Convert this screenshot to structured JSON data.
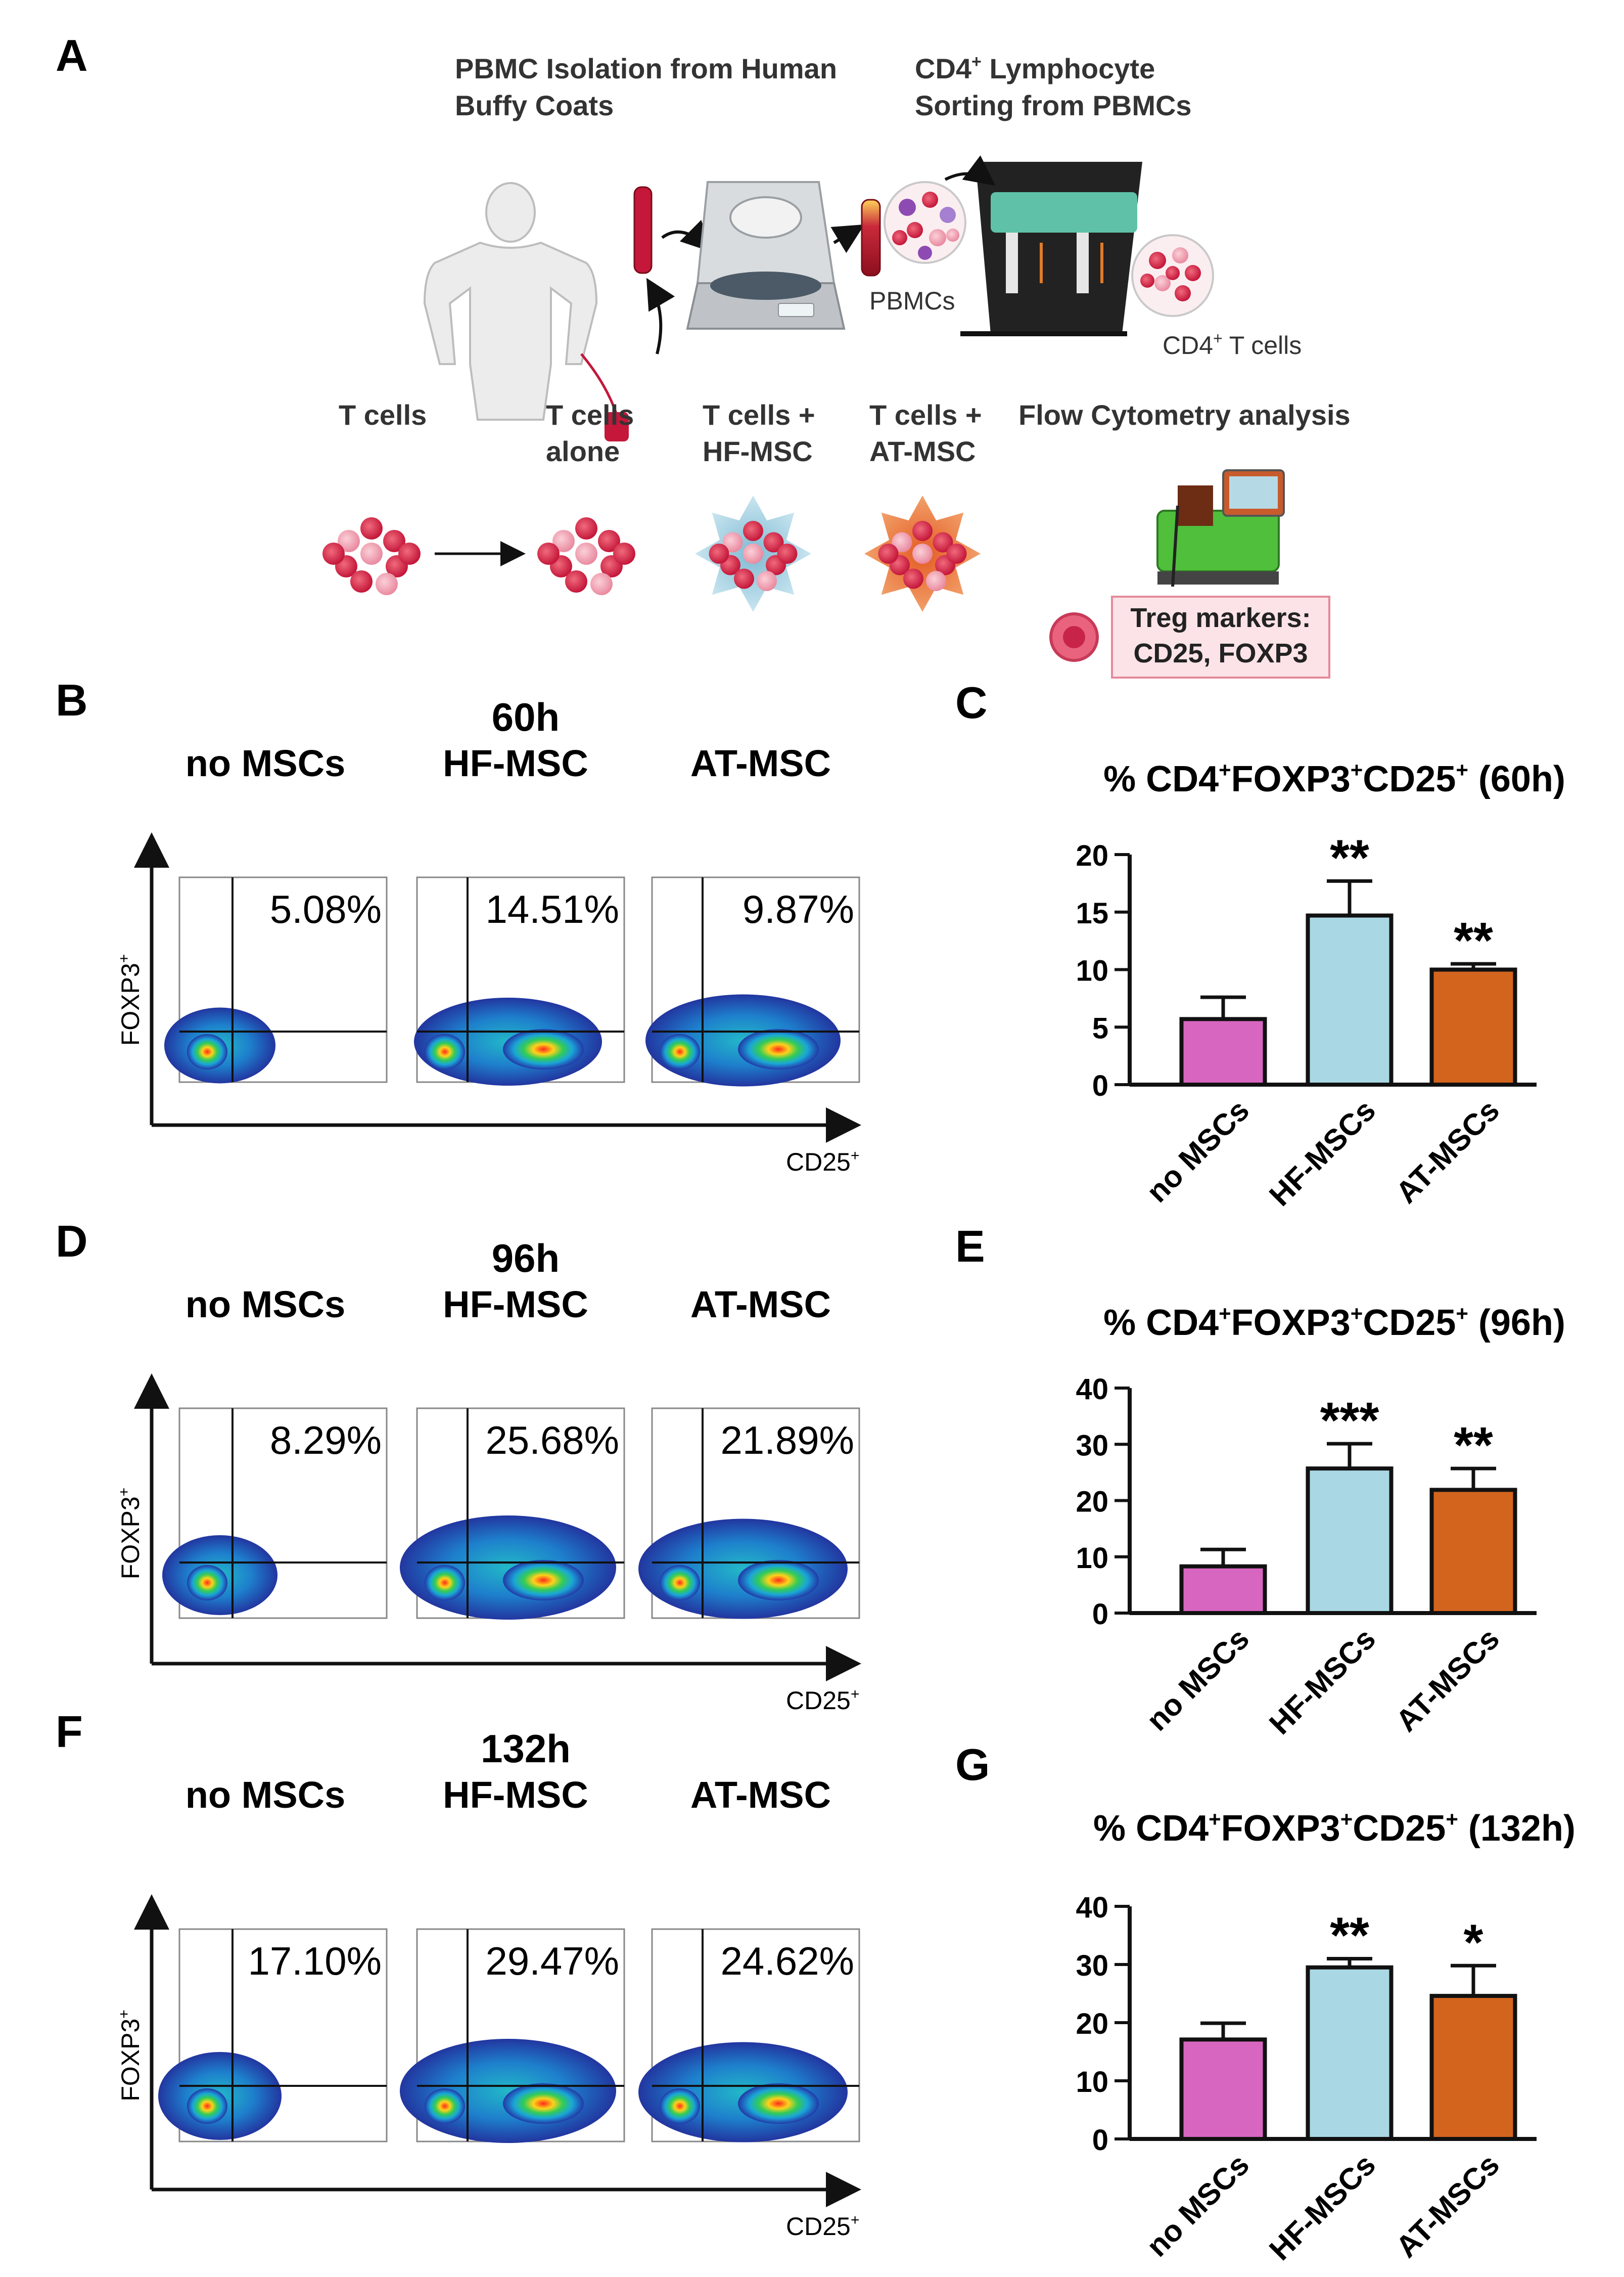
{
  "colors": {
    "no_msc": "#d766c0",
    "hf_msc": "#a9d7e3",
    "at_msc": "#d3641e",
    "dot_red": "#d62d48",
    "dot_pink": "#f0a2b2",
    "treg_box": "#fbe3e7"
  },
  "panelA": {
    "letter": "A",
    "pbmc_isolation_l1": "PBMC Isolation from Human",
    "pbmc_isolation_l2": "Buffy Coats",
    "cd4_sorting_l1": "CD4",
    "cd4_sorting_sup": "+",
    "cd4_sorting_l1b": " Lymphocyte",
    "cd4_sorting_l2": "Sorting from PBMCs",
    "pbmcs_label": "PBMCs",
    "cd4_tcells_a": "CD4",
    "cd4_tcells_sup": "+",
    "cd4_tcells_b": " T cells",
    "tcells": "T cells",
    "tcells_alone_l1": "T cells",
    "tcells_alone_l2": "alone",
    "tcells_hf_l1": "T cells  +",
    "tcells_hf_l2": "HF-MSC",
    "tcells_at_l1": "T cells +",
    "tcells_at_l2": "AT-MSC",
    "flow_analysis": "Flow Cytometry analysis",
    "treg_l1": "Treg markers:",
    "treg_l2": "CD25, FOXP3"
  },
  "flow_panels": [
    {
      "letter": "B",
      "time": "60h",
      "cols": [
        "no MSCs",
        "HF-MSC",
        "AT-MSC"
      ],
      "percents": [
        "5.08%",
        "14.51%",
        "9.87%"
      ],
      "ylabel": "FOXP3",
      "ysup": "+",
      "xlabel": "CD25",
      "xsup": "+"
    },
    {
      "letter": "D",
      "time": "96h",
      "cols": [
        "no MSCs",
        "HF-MSC",
        "AT-MSC"
      ],
      "percents": [
        "8.29%",
        "25.68%",
        "21.89%"
      ],
      "ylabel": "FOXP3",
      "ysup": "+",
      "xlabel": "CD25",
      "xsup": "+"
    },
    {
      "letter": "F",
      "time": "132h",
      "cols": [
        "no MSCs",
        "HF-MSC",
        "AT-MSC"
      ],
      "percents": [
        "17.10%",
        "29.47%",
        "24.62%"
      ],
      "ylabel": "FOXP3",
      "ysup": "+",
      "xlabel": "CD25",
      "xsup": "+"
    }
  ],
  "chart_data": [
    {
      "letter": "C",
      "type": "bar",
      "title_pre": "% CD4",
      "title_sup1": "+",
      "title_mid1": "FOXP3",
      "title_sup2": "+",
      "title_mid2": "CD25",
      "title_sup3": "+",
      "title_post": " (60h)",
      "categories": [
        "no MSCs",
        "HF-MSCs",
        "AT-MSCs"
      ],
      "values": [
        5.7,
        14.7,
        10.0
      ],
      "errors": [
        1.9,
        3.0,
        0.5
      ],
      "significance": [
        "",
        "**",
        "**"
      ],
      "ylim": [
        0,
        20
      ],
      "yticks": [
        0,
        5,
        10,
        15,
        20
      ]
    },
    {
      "letter": "E",
      "type": "bar",
      "title_pre": "% CD4",
      "title_sup1": "+",
      "title_mid1": "FOXP3",
      "title_sup2": "+",
      "title_mid2": "CD25",
      "title_sup3": "+",
      "title_post": " (96h)",
      "categories": [
        "no MSCs",
        "HF-MSCs",
        "AT-MSCs"
      ],
      "values": [
        8.3,
        25.7,
        21.9
      ],
      "errors": [
        3.0,
        4.4,
        3.8
      ],
      "significance": [
        "",
        "***",
        "**"
      ],
      "ylim": [
        0,
        40
      ],
      "yticks": [
        0,
        10,
        20,
        30,
        40
      ]
    },
    {
      "letter": "G",
      "type": "bar",
      "title_pre": "% CD4",
      "title_sup1": "+",
      "title_mid1": "FOXP3",
      "title_sup2": "+",
      "title_mid2": "CD25",
      "title_sup3": "+",
      "title_post": " (132h)",
      "categories": [
        "no MSCs",
        "HF-MSCs",
        "AT-MSCs"
      ],
      "values": [
        17.1,
        29.5,
        24.6
      ],
      "errors": [
        2.8,
        1.5,
        5.2
      ],
      "significance": [
        "",
        "**",
        "*"
      ],
      "ylim": [
        0,
        40
      ],
      "yticks": [
        0,
        10,
        20,
        30,
        40
      ]
    }
  ]
}
